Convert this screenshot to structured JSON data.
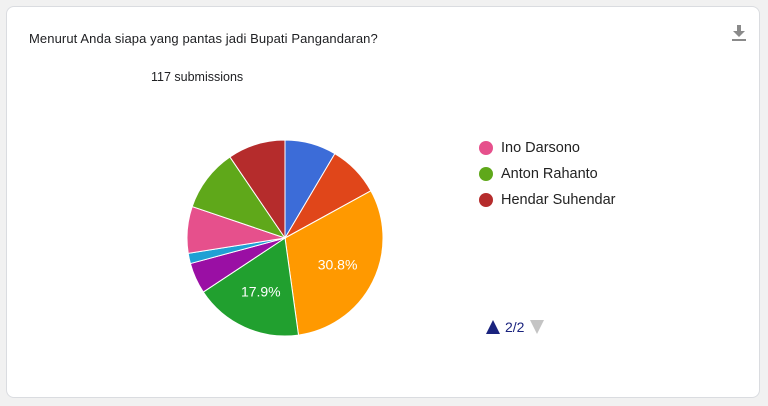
{
  "question": "Menurut Anda siapa yang pantas jadi Bupati Pangandaran?",
  "submissions_label": "117 submissions",
  "icons": {
    "download": "download-icon",
    "page_up": "triangle-up-icon",
    "page_down": "triangle-down-icon"
  },
  "legend": {
    "items": [
      {
        "label": "Ino Darsono",
        "color": "#e6508c"
      },
      {
        "label": "Anton Rahanto",
        "color": "#5fa81a"
      },
      {
        "label": "Hendar Suhendar",
        "color": "#b52c2c"
      }
    ],
    "pager": {
      "text": "2/2",
      "up_color": "#1a237e",
      "down_color": "#c4c4c4"
    }
  },
  "chart_data": {
    "type": "pie",
    "title": "Menurut Anda siapa yang pantas jadi Bupati Pangandaran?",
    "total_label": "117 submissions",
    "slices": [
      {
        "value": 8.5,
        "color": "#3c6cd8"
      },
      {
        "value": 8.5,
        "color": "#e0461a"
      },
      {
        "value": 30.8,
        "color": "#ff9900",
        "label": "30.8%"
      },
      {
        "value": 17.9,
        "color": "#21a02f",
        "label": "17.9%"
      },
      {
        "value": 5.1,
        "color": "#9a0fa4"
      },
      {
        "value": 1.7,
        "color": "#1fa0d4"
      },
      {
        "value": 7.7,
        "color": "#e6508c"
      },
      {
        "value": 10.3,
        "color": "#5fa81a"
      },
      {
        "value": 9.5,
        "color": "#b52c2c"
      }
    ],
    "legend_position": "right",
    "legend_page": "2/2"
  }
}
